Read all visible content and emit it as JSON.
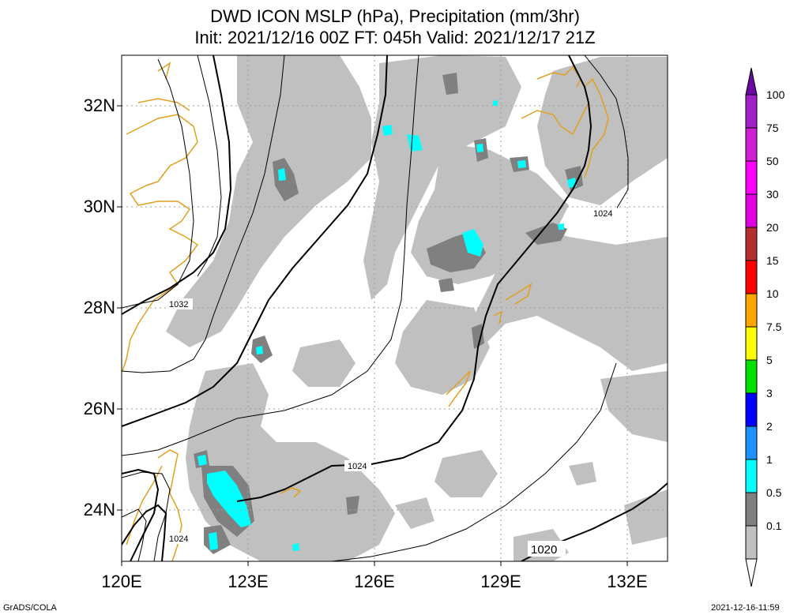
{
  "title": {
    "line1": "DWD ICON MSLP (hPa), Precipitation (mm/3hr)",
    "line2": "Init: 2021/12/16 00Z  FT: 045h  Valid: 2021/12/17 21Z"
  },
  "axes": {
    "lat_labels": [
      "32N",
      "30N",
      "28N",
      "26N",
      "24N"
    ],
    "lon_labels": [
      "120E",
      "123E",
      "126E",
      "129E",
      "132E"
    ]
  },
  "isobar_labels": [
    "1032",
    "1024",
    "1024",
    "1024",
    "1020"
  ],
  "colorbar": {
    "labels": [
      "100",
      "75",
      "50",
      "30",
      "20",
      "15",
      "10",
      "7.5",
      "5",
      "3",
      "2",
      "1",
      "0.5",
      "0.1"
    ],
    "colors": [
      "#6a0aa0",
      "#a020c8",
      "#d21ed2",
      "#ff00ff",
      "#b43030",
      "#ff0000",
      "#ffa500",
      "#ffff00",
      "#00e000",
      "#0000ff",
      "#1e90ff",
      "#00ffff",
      "#808080",
      "#c0c0c0",
      "#ffffff"
    ]
  },
  "footer": {
    "left": "GrADS/COLA",
    "right": "2021-12-16-11:59"
  },
  "colors": {
    "precip_light": "#c0c0c0",
    "precip_mid": "#808080",
    "precip_heavy": "#00ffff",
    "coast": "#e0a020",
    "grid": "#a0a0a0"
  }
}
